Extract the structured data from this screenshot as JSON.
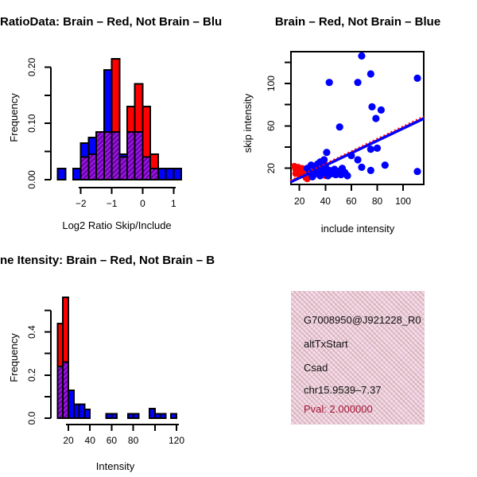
{
  "legend": {
    "red_means": "Brain",
    "blue_means": "Not Brain"
  },
  "colors": {
    "red": "#FF0000",
    "blue": "#0000FF",
    "overlap_fill": "#A020F0",
    "overlap_stripe": "#6E00A8",
    "pval_text": "#A21233",
    "info_bg": "#F8D8EB",
    "axis": "#000000"
  },
  "chart_data": [
    {
      "id": "log-ratio-histogram",
      "type": "histogram",
      "title": "RatioData: Brain – Red, Not Brain – Blu",
      "xlabel": "Log2 Ratio Skip/Include",
      "ylabel": "Frequency",
      "xlim": [
        -2.75,
        1.25
      ],
      "ylim": [
        0,
        0.22
      ],
      "grid": false,
      "bin_start": -2.75,
      "bin_width": 0.25,
      "x_ticks": [
        {
          "v": -2,
          "label": "−2"
        },
        {
          "v": -1,
          "label": "−1"
        },
        {
          "v": 0,
          "label": "0"
        },
        {
          "v": 1,
          "label": "1"
        }
      ],
      "y_ticks": [
        {
          "v": 0.0,
          "label": "0.00"
        },
        {
          "v": 0.05,
          "label": ""
        },
        {
          "v": 0.1,
          "label": "0.10"
        },
        {
          "v": 0.15,
          "label": ""
        },
        {
          "v": 0.2,
          "label": "0.20"
        }
      ],
      "series": [
        {
          "name": "Not Brain",
          "color": "#0000FF",
          "values": [
            0.02,
            0,
            0.02,
            0.065,
            0.075,
            0.085,
            0.195,
            0.085,
            0.045,
            0.085,
            0.085,
            0.04,
            0.02,
            0.02,
            0.02,
            0.02
          ]
        },
        {
          "name": "Brain",
          "color": "#FF0000",
          "values": [
            0,
            0,
            0,
            0.04,
            0.045,
            0.085,
            0.085,
            0.215,
            0.04,
            0.13,
            0.17,
            0.13,
            0.045,
            0,
            0,
            0
          ]
        }
      ],
      "overlap_style": "purple-hatched"
    },
    {
      "id": "skip-vs-include-scatter",
      "type": "scatter",
      "title": "Brain – Red, Not Brain – Blue",
      "xlabel": "include intensity",
      "ylabel": "skip intensity",
      "xlim": [
        13,
        116
      ],
      "ylim": [
        5,
        130
      ],
      "grid": false,
      "x_ticks": [
        {
          "v": 20,
          "label": "20"
        },
        {
          "v": 40,
          "label": "40"
        },
        {
          "v": 60,
          "label": "60"
        },
        {
          "v": 80,
          "label": "80"
        },
        {
          "v": 100,
          "label": "100"
        }
      ],
      "y_ticks": [
        {
          "v": 20,
          "label": "20"
        },
        {
          "v": 40,
          "label": ""
        },
        {
          "v": 60,
          "label": "60"
        },
        {
          "v": 80,
          "label": ""
        },
        {
          "v": 100,
          "label": "100"
        },
        {
          "v": 120,
          "label": ""
        }
      ],
      "series": [
        {
          "name": "Not Brain",
          "color": "#0000FF",
          "points": [
            [
              68,
              126
            ],
            [
              75,
              109
            ],
            [
              43,
              101
            ],
            [
              65,
              101
            ],
            [
              111,
              105
            ],
            [
              76,
              78
            ],
            [
              83,
              75
            ],
            [
              79,
              67
            ],
            [
              51,
              59
            ],
            [
              80,
              39
            ],
            [
              75,
              38
            ],
            [
              41,
              35
            ],
            [
              39,
              28
            ],
            [
              60,
              32
            ],
            [
              36,
              26
            ],
            [
              65,
              28
            ],
            [
              68,
              21
            ],
            [
              86,
              23
            ],
            [
              75,
              18
            ],
            [
              111,
              17
            ],
            [
              26,
              20
            ],
            [
              28,
              16
            ],
            [
              29,
              23
            ],
            [
              31,
              14
            ],
            [
              32,
              19
            ],
            [
              34,
              16
            ],
            [
              34,
              24
            ],
            [
              36,
              13
            ],
            [
              37,
              20
            ],
            [
              39,
              16
            ],
            [
              40,
              22
            ],
            [
              42,
              13
            ],
            [
              43,
              18
            ],
            [
              45,
              15
            ],
            [
              47,
              19
            ],
            [
              48,
              14
            ],
            [
              50,
              17
            ],
            [
              52,
              14
            ],
            [
              53,
              20
            ],
            [
              55,
              16
            ],
            [
              57,
              13
            ],
            [
              30,
              12
            ]
          ]
        },
        {
          "name": "Brain",
          "color": "#FF0000",
          "points": [
            [
              16,
              22
            ],
            [
              17,
              19
            ],
            [
              18,
              17
            ],
            [
              19,
              21
            ],
            [
              20,
              18
            ],
            [
              21,
              15
            ],
            [
              22,
              20
            ],
            [
              23,
              17
            ],
            [
              24,
              13
            ],
            [
              25,
              11
            ],
            [
              26,
              10
            ],
            [
              20,
              14
            ],
            [
              27,
              13
            ],
            [
              40,
              13
            ],
            [
              43,
              14
            ],
            [
              17,
              15
            ]
          ]
        }
      ],
      "fit_lines": [
        {
          "name": "Not Brain fit",
          "color": "#0000FF",
          "style": "solid",
          "x1": 13,
          "y1": 7,
          "x2": 116,
          "y2": 67
        },
        {
          "name": "Brain fit",
          "color": "#FF0000",
          "style": "dotted",
          "x1": 13,
          "y1": 8.5,
          "x2": 116,
          "y2": 69
        }
      ]
    },
    {
      "id": "gene-intensity-histogram",
      "type": "histogram",
      "title": "ne Itensity: Brain – Red, Not Brain – B",
      "xlabel": "Intensity",
      "ylabel": "Frequency",
      "xlim": [
        10,
        120
      ],
      "ylim": [
        0,
        0.56
      ],
      "grid": false,
      "bin_start": 10,
      "bin_width": 5,
      "x_ticks": [
        {
          "v": 20,
          "label": "20"
        },
        {
          "v": 40,
          "label": "40"
        },
        {
          "v": 60,
          "label": "60"
        },
        {
          "v": 80,
          "label": "80"
        },
        {
          "v": 100,
          "label": ""
        },
        {
          "v": 120,
          "label": "120"
        }
      ],
      "y_ticks": [
        {
          "v": 0.0,
          "label": "0.0"
        },
        {
          "v": 0.1,
          "label": ""
        },
        {
          "v": 0.2,
          "label": "0.2"
        },
        {
          "v": 0.3,
          "label": ""
        },
        {
          "v": 0.4,
          "label": "0.4"
        },
        {
          "v": 0.5,
          "label": ""
        }
      ],
      "series": [
        {
          "name": "Not Brain",
          "color": "#0000FF",
          "values": [
            0.24,
            0.26,
            0.13,
            0.065,
            0.065,
            0.04,
            0,
            0,
            0,
            0.02,
            0.02,
            0,
            0,
            0.02,
            0.02,
            0,
            0,
            0.045,
            0.02,
            0.02,
            0,
            0.02
          ]
        },
        {
          "name": "Brain",
          "color": "#FF0000",
          "values": [
            0.44,
            0.56,
            0,
            0,
            0,
            0,
            0,
            0,
            0,
            0,
            0,
            0,
            0,
            0,
            0,
            0,
            0,
            0,
            0,
            0,
            0,
            0
          ]
        }
      ],
      "overlap_style": "purple-hatched"
    },
    {
      "id": "info-panel",
      "type": "text-panel",
      "lines": {
        "probe": "G7008950@J921228_R0",
        "event": "altTxStart",
        "gene": "Csad",
        "locus": "chr15.9539–7.37",
        "pval": "Pval: 2.000000"
      }
    }
  ]
}
